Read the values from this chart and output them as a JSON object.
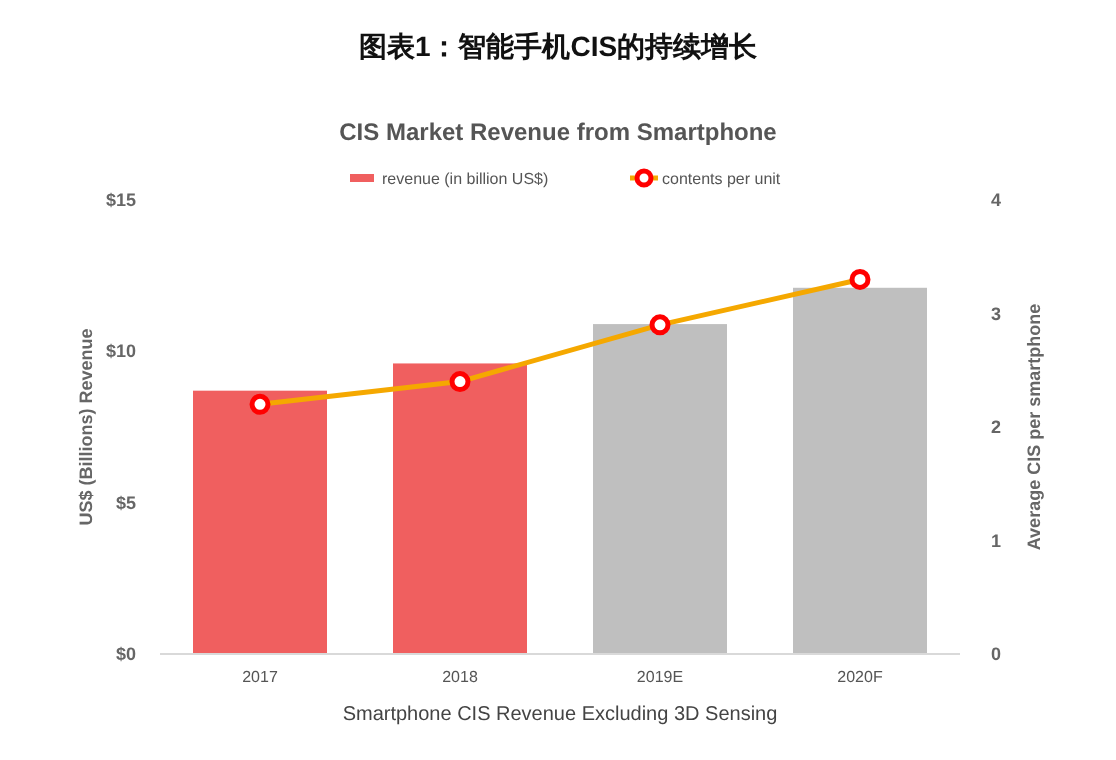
{
  "chart_data": {
    "type": "bar",
    "title": "图表1：智能手机CIS的持续增长",
    "subtitle": "CIS Market Revenue from Smartphone",
    "xlabel": "Smartphone CIS Revenue Excluding 3D Sensing",
    "ylabel": "US$ (Billions) Revenue",
    "y2label": "Average CIS per smartphone",
    "categories": [
      "2017",
      "2018",
      "2019E",
      "2020F"
    ],
    "series": [
      {
        "name": "revenue (in billion US$)",
        "color": "#f05f5f",
        "colors": [
          "#f05f5f",
          "#f05f5f",
          "#bfbfbf",
          "#bfbfbf"
        ],
        "values": [
          8.7,
          9.6,
          10.9,
          12.1
        ]
      },
      {
        "name": "contents per unit",
        "type": "line",
        "axis": "y2",
        "color": "#f5a800",
        "marker": "circle",
        "values": [
          2.2,
          2.4,
          2.9,
          3.3
        ]
      }
    ],
    "ylim": [
      0,
      15
    ],
    "yticks": [
      {
        "value": 0,
        "label": "$0"
      },
      {
        "value": 5,
        "label": "$5"
      },
      {
        "value": 10,
        "label": "$10"
      },
      {
        "value": 15,
        "label": "$15"
      }
    ],
    "y2lim": [
      0,
      4
    ],
    "y2ticks": [
      0,
      1,
      2,
      3,
      4
    ],
    "legend": "top",
    "grid": false
  }
}
